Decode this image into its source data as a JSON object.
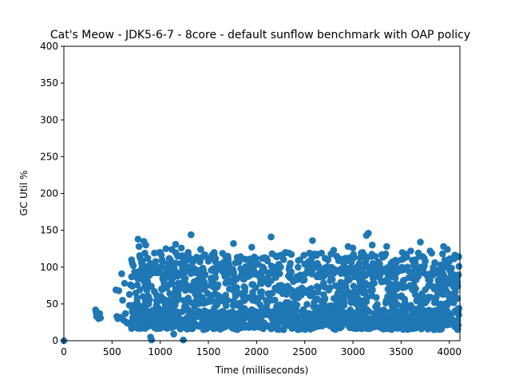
{
  "chart_data": {
    "type": "scatter",
    "title": "Cat's Meow - JDK5-6-7 - 8core -  default sunflow benchmark with OAP policy",
    "xlabel": "Time (milliseconds)",
    "ylabel": "GC Util %",
    "xlim": [
      0,
      4110
    ],
    "ylim": [
      0,
      400
    ],
    "xticks": [
      0,
      500,
      1000,
      1500,
      2000,
      2500,
      3000,
      3500,
      4000
    ],
    "yticks": [
      0,
      50,
      100,
      150,
      200,
      250,
      300,
      350,
      400
    ],
    "grid": false,
    "marker_color": "#1f77b4",
    "series": [
      {
        "points": [
          [
            0,
            0
          ],
          [
            330,
            42
          ],
          [
            335,
            38
          ],
          [
            340,
            33
          ],
          [
            350,
            35
          ],
          [
            360,
            30
          ],
          [
            370,
            37
          ],
          [
            380,
            31
          ],
          [
            540,
            69
          ],
          [
            550,
            33
          ],
          [
            560,
            30
          ],
          [
            570,
            68
          ],
          [
            590,
            32
          ],
          [
            600,
            91
          ],
          [
            610,
            55
          ],
          [
            620,
            28
          ],
          [
            630,
            78
          ],
          [
            640,
            37
          ],
          [
            650,
            25
          ],
          [
            660,
            24
          ],
          [
            680,
            63
          ],
          [
            690,
            76
          ],
          [
            700,
            20
          ],
          [
            710,
            23
          ],
          [
            720,
            102
          ],
          [
            730,
            40
          ],
          [
            740,
            20
          ],
          [
            750,
            18
          ],
          [
            770,
            138
          ],
          [
            780,
            128
          ],
          [
            790,
            69
          ],
          [
            800,
            110
          ],
          [
            810,
            99
          ],
          [
            820,
            60
          ],
          [
            830,
            135
          ],
          [
            840,
            119
          ],
          [
            850,
            130
          ],
          [
            860,
            33
          ],
          [
            870,
            80
          ],
          [
            880,
            88
          ],
          [
            890,
            56
          ],
          [
            900,
            5
          ],
          [
            910,
            1
          ],
          [
            920,
            40
          ],
          [
            930,
            104
          ],
          [
            940,
            119
          ],
          [
            950,
            97
          ],
          [
            960,
            48
          ],
          [
            980,
            96
          ],
          [
            1000,
            120
          ],
          [
            1020,
            110
          ],
          [
            1040,
            20
          ],
          [
            1060,
            125
          ],
          [
            1080,
            105
          ],
          [
            1100,
            92
          ],
          [
            1120,
            124
          ],
          [
            1140,
            9
          ],
          [
            1160,
            131
          ],
          [
            1180,
            60
          ],
          [
            1200,
            115
          ],
          [
            1220,
            126
          ],
          [
            1240,
            1
          ],
          [
            1260,
            100
          ],
          [
            1290,
            120
          ],
          [
            1320,
            144
          ],
          [
            1350,
            22
          ],
          [
            1380,
            56
          ],
          [
            1400,
            110
          ],
          [
            1420,
            124
          ],
          [
            1450,
            15
          ],
          [
            1480,
            52
          ],
          [
            1500,
            108
          ],
          [
            1530,
            22
          ],
          [
            1560,
            111
          ],
          [
            1600,
            104
          ],
          [
            1650,
            40
          ],
          [
            1700,
            98
          ],
          [
            1760,
            132
          ],
          [
            1800,
            108
          ],
          [
            1850,
            92
          ],
          [
            1900,
            110
          ],
          [
            1950,
            127
          ],
          [
            2000,
            104
          ],
          [
            2050,
            60
          ],
          [
            2100,
            20
          ],
          [
            2150,
            141
          ],
          [
            2200,
            115
          ],
          [
            2250,
            100
          ],
          [
            2300,
            120
          ],
          [
            2350,
            105
          ],
          [
            2400,
            40
          ],
          [
            2450,
            110
          ],
          [
            2500,
            104
          ],
          [
            2550,
            119
          ],
          [
            2580,
            136
          ],
          [
            2620,
            100
          ],
          [
            2680,
            20
          ],
          [
            2740,
            110
          ],
          [
            2800,
            123
          ],
          [
            2850,
            95
          ],
          [
            2900,
            106
          ],
          [
            2950,
            128
          ],
          [
            3000,
            126
          ],
          [
            3050,
            40
          ],
          [
            3100,
            120
          ],
          [
            3140,
            143
          ],
          [
            3160,
            146
          ],
          [
            3200,
            130
          ],
          [
            3250,
            105
          ],
          [
            3300,
            117
          ],
          [
            3350,
            128
          ],
          [
            3400,
            105
          ],
          [
            3450,
            60
          ],
          [
            3500,
            110
          ],
          [
            3550,
            40
          ],
          [
            3600,
            122
          ],
          [
            3650,
            98
          ],
          [
            3700,
            134
          ],
          [
            3750,
            108
          ],
          [
            3800,
            122
          ],
          [
            3850,
            106
          ],
          [
            3900,
            90
          ],
          [
            3940,
            128
          ],
          [
            3980,
            124
          ],
          [
            4020,
            85
          ],
          [
            4060,
            60
          ],
          [
            4100,
            101
          ],
          [
            4100,
            44
          ],
          [
            4000,
            22
          ],
          [
            4000,
            32
          ],
          [
            3960,
            70
          ],
          [
            3920,
            50
          ],
          [
            3880,
            28
          ],
          [
            3840,
            15
          ],
          [
            3800,
            82
          ],
          [
            3760,
            40
          ],
          [
            3720,
            62
          ],
          [
            3680,
            25
          ],
          [
            3640,
            90
          ],
          [
            3600,
            48
          ],
          [
            3560,
            18
          ],
          [
            3520,
            72
          ],
          [
            3480,
            35
          ],
          [
            3440,
            85
          ],
          [
            3400,
            22
          ],
          [
            3360,
            60
          ],
          [
            3320,
            42
          ],
          [
            3280,
            95
          ],
          [
            3240,
            30
          ],
          [
            3200,
            70
          ],
          [
            3160,
            18
          ],
          [
            3120,
            55
          ],
          [
            3080,
            88
          ],
          [
            3040,
            25
          ],
          [
            3000,
            65
          ],
          [
            2960,
            32
          ],
          [
            2920,
            78
          ],
          [
            2880,
            20
          ],
          [
            2840,
            50
          ],
          [
            2800,
            36
          ],
          [
            2760,
            72
          ],
          [
            2720,
            28
          ],
          [
            2680,
            90
          ],
          [
            2640,
            45
          ],
          [
            2600,
            18
          ],
          [
            2560,
            66
          ],
          [
            2520,
            30
          ],
          [
            2480,
            82
          ],
          [
            2440,
            22
          ],
          [
            2400,
            58
          ],
          [
            2360,
            38
          ],
          [
            2320,
            74
          ],
          [
            2280,
            15
          ],
          [
            2240,
            48
          ],
          [
            2200,
            86
          ],
          [
            2160,
            30
          ],
          [
            2120,
            64
          ],
          [
            2080,
            24
          ],
          [
            2040,
            78
          ],
          [
            2000,
            36
          ],
          [
            1960,
            55
          ],
          [
            1920,
            18
          ],
          [
            1880,
            72
          ],
          [
            1840,
            44
          ],
          [
            1800,
            28
          ],
          [
            1760,
            90
          ],
          [
            1720,
            38
          ],
          [
            1680,
            62
          ],
          [
            1640,
            20
          ],
          [
            1600,
            76
          ],
          [
            1560,
            34
          ],
          [
            1520,
            58
          ],
          [
            1480,
            16
          ],
          [
            1440,
            84
          ],
          [
            1400,
            40
          ],
          [
            1360,
            66
          ],
          [
            1320,
            25
          ],
          [
            1280,
            52
          ],
          [
            1240,
            88
          ],
          [
            1200,
            30
          ],
          [
            1160,
            70
          ],
          [
            1120,
            18
          ],
          [
            1080,
            46
          ],
          [
            1040,
            80
          ],
          [
            1000,
            28
          ],
          [
            960,
            62
          ],
          [
            920,
            22
          ],
          [
            880,
            50
          ],
          [
            840,
            74
          ],
          [
            800,
            36
          ],
          [
            760,
            58
          ],
          [
            720,
            26
          ],
          [
            680,
            48
          ]
        ]
      }
    ]
  }
}
